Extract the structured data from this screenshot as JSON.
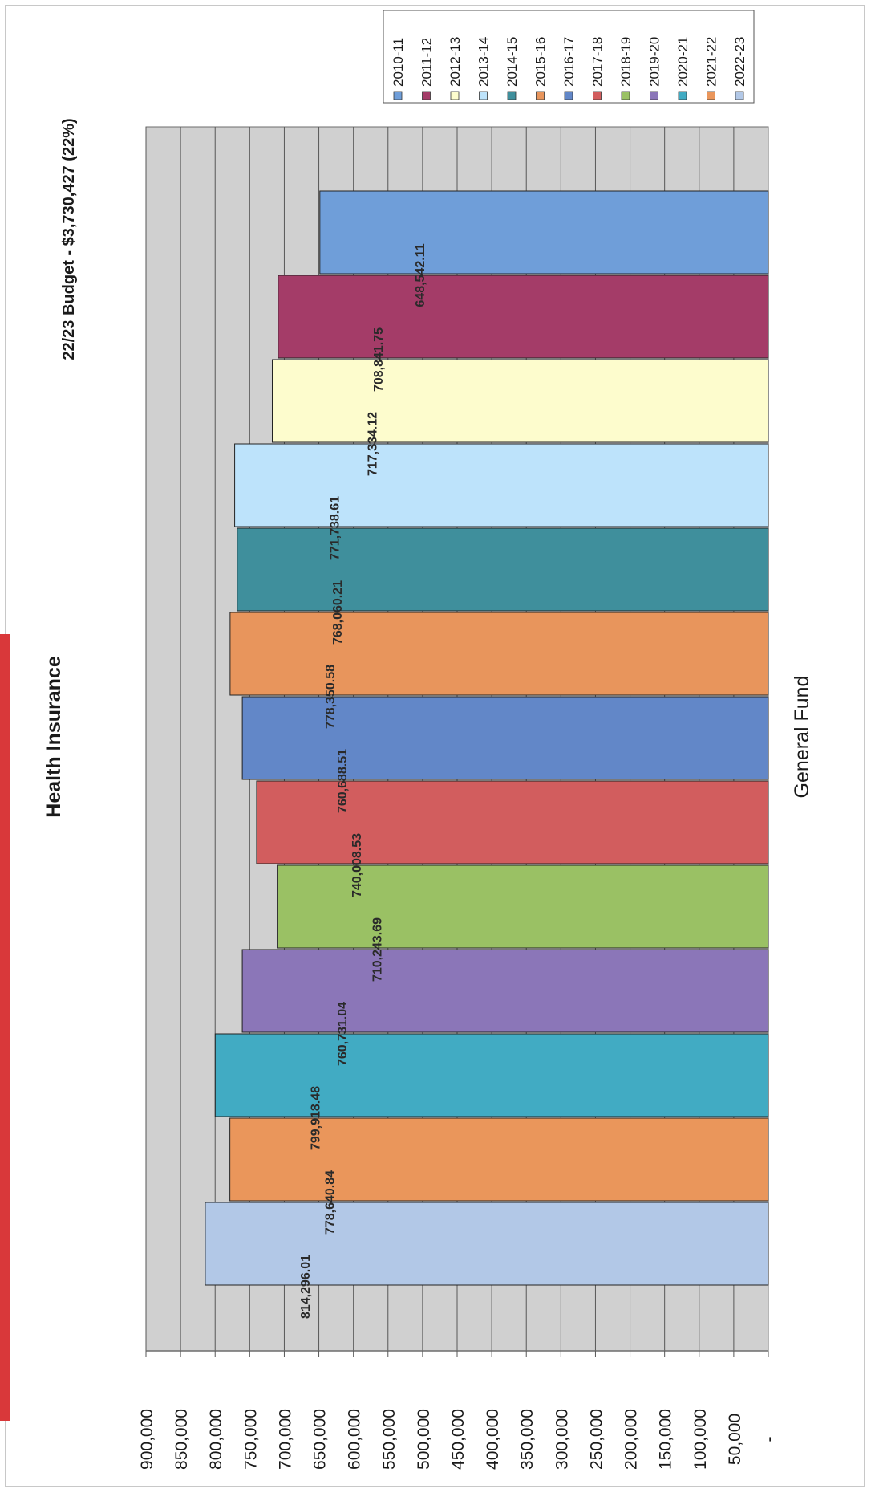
{
  "chart_data": {
    "type": "bar",
    "title": "Health Insurance",
    "subtitle": "22/23 Budget - $3,730,427 (22%)",
    "xlabel": "General Fund",
    "categories": [
      "General Fund"
    ],
    "ylim": [
      0,
      900000
    ],
    "y_ticks": [
      "-",
      "50,000",
      "100,000",
      "150,000",
      "200,000",
      "250,000",
      "300,000",
      "350,000",
      "400,000",
      "450,000",
      "500,000",
      "550,000",
      "600,000",
      "650,000",
      "700,000",
      "750,000",
      "800,000",
      "850,000",
      "900,000"
    ],
    "legend_position": "top-right",
    "grid": true,
    "series": [
      {
        "name": "2010-11",
        "value": 648542.11,
        "label": "648,542.11",
        "color": "#6f9ed9"
      },
      {
        "name": "2011-12",
        "value": 708841.75,
        "label": "708,841.75",
        "color": "#a43c68"
      },
      {
        "name": "2012-13",
        "value": 717334.12,
        "label": "717,334.12",
        "color": "#fdfccd"
      },
      {
        "name": "2013-14",
        "value": 771738.61,
        "label": "771,738.61",
        "color": "#bde3fb"
      },
      {
        "name": "2014-15",
        "value": 768060.21,
        "label": "768,060.21",
        "color": "#3f8f9c"
      },
      {
        "name": "2015-16",
        "value": 778350.58,
        "label": "778,350.58",
        "color": "#e8955c"
      },
      {
        "name": "2016-17",
        "value": 760688.51,
        "label": "760,688.51",
        "color": "#6287c8"
      },
      {
        "name": "2017-18",
        "value": 740008.53,
        "label": "740,008.53",
        "color": "#d25d5e"
      },
      {
        "name": "2018-19",
        "value": 710243.69,
        "label": "710,243.69",
        "color": "#9ac164"
      },
      {
        "name": "2019-20",
        "value": 760731.04,
        "label": "760,731.04",
        "color": "#8b76b8"
      },
      {
        "name": "2020-21",
        "value": 799918.48,
        "label": "799,918.48",
        "color": "#41abc3"
      },
      {
        "name": "2021-22",
        "value": 778640.84,
        "label": "778,640.84",
        "color": "#ea965b"
      },
      {
        "name": "2022-23",
        "value": 814296.01,
        "label": "814,296.01",
        "color": "#b2c8e7"
      }
    ]
  }
}
